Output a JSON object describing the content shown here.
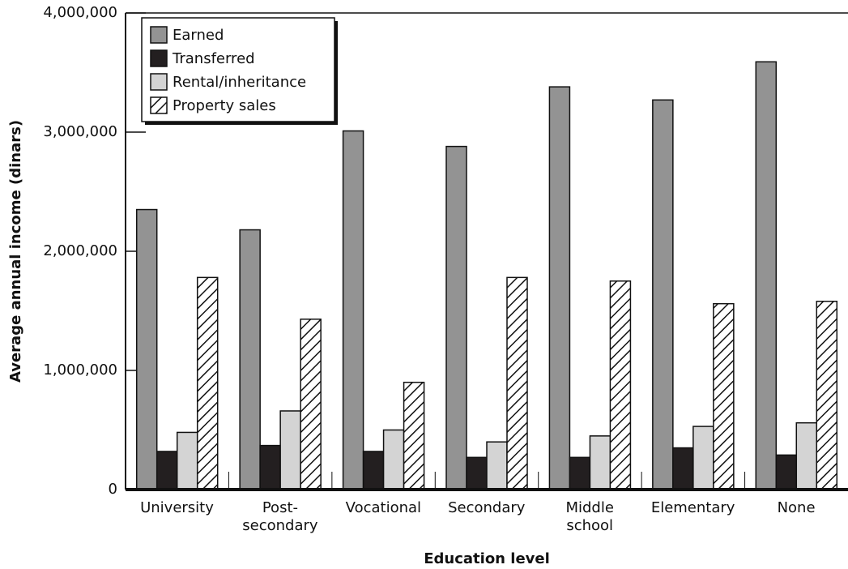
{
  "chart_data": {
    "type": "bar",
    "x_label": "Education level",
    "y_label": "Average annual income (dinars)",
    "categories": [
      "University",
      "Post-\nsecondary",
      "Vocational",
      "Secondary",
      "Middle\nschool",
      "Elementary",
      "None"
    ],
    "series": [
      {
        "name": "Earned",
        "color": "#939393",
        "values": [
          2350000,
          2180000,
          3010000,
          2880000,
          3380000,
          3270000,
          3590000
        ]
      },
      {
        "name": "Transferred",
        "color": "#231f20",
        "values": [
          320000,
          370000,
          320000,
          270000,
          270000,
          350000,
          290000
        ]
      },
      {
        "name": "Rental/inheritance",
        "color": "#d4d4d4",
        "values": [
          480000,
          660000,
          500000,
          400000,
          450000,
          530000,
          560000
        ]
      },
      {
        "name": "Property sales",
        "color": "#ffffff",
        "pattern": "hatch",
        "values": [
          1780000,
          1430000,
          900000,
          1780000,
          1750000,
          1560000,
          1580000
        ]
      }
    ],
    "ylim": [
      0,
      4000000
    ],
    "yticks": [
      0,
      {
        "value": 1000000,
        "label": "1,000,000"
      },
      {
        "value": 2000000,
        "label": "2,000,000"
      },
      {
        "value": 3000000,
        "label": "3,000,000"
      },
      {
        "value": 4000000,
        "label": "4,000,000"
      }
    ],
    "legend": "upper left"
  }
}
